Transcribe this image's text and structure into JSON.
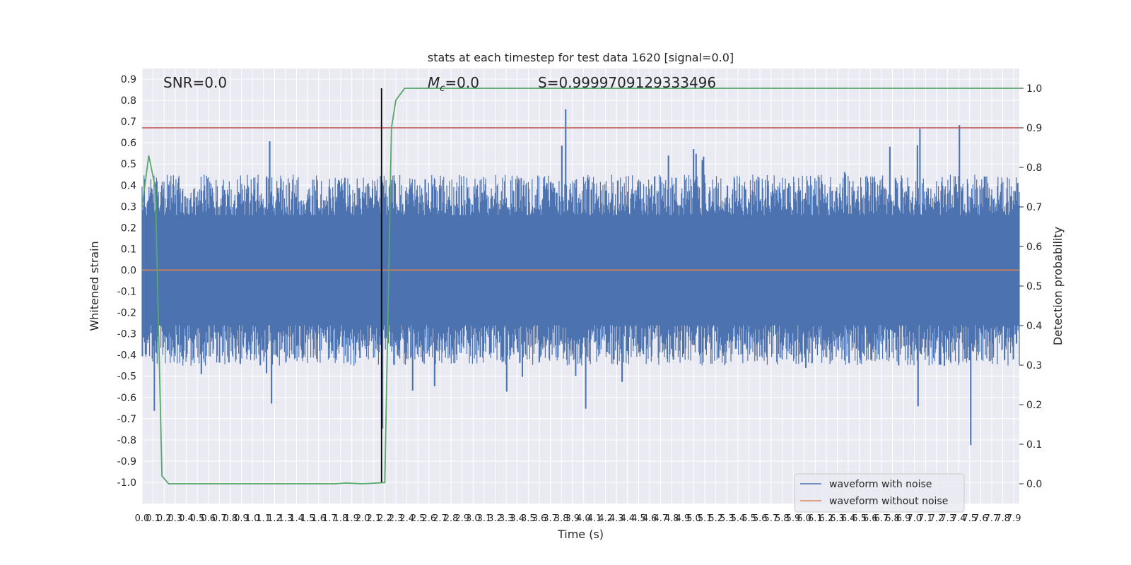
{
  "chart_data": {
    "type": "line",
    "title": "stats at each timestep for test data 1620 [signal=0.0]",
    "xlabel": "Time (s)",
    "ylabel": "Whitened strain",
    "y2label": "Detection probability",
    "xlim": [
      0.0,
      7.95
    ],
    "ylim": [
      -1.1,
      0.95
    ],
    "y2lim": [
      -0.05,
      1.05
    ],
    "x_ticks": [
      "0.0",
      "0.1",
      "0.2",
      "0.3",
      "0.4",
      "0.5",
      "0.6",
      "0.7",
      "0.8",
      "0.9",
      "1.0",
      "1.1",
      "1.2",
      "1.3",
      "1.4",
      "1.5",
      "1.6",
      "1.7",
      "1.8",
      "1.9",
      "2.0",
      "2.1",
      "2.2",
      "2.3",
      "2.4",
      "2.5",
      "2.6",
      "2.7",
      "2.8",
      "2.9",
      "3.0",
      "3.1",
      "3.2",
      "3.3",
      "3.4",
      "3.5",
      "3.6",
      "3.7",
      "3.8",
      "3.9",
      "4.0",
      "4.1",
      "4.2",
      "4.3",
      "4.4",
      "4.5",
      "4.6",
      "4.7",
      "4.8",
      "4.9",
      "5.0",
      "5.1",
      "5.2",
      "5.3",
      "5.4",
      "5.5",
      "5.6",
      "5.7",
      "5.8",
      "5.9",
      "6.0",
      "6.1",
      "6.2",
      "6.3",
      "6.4",
      "6.5",
      "6.6",
      "6.7",
      "6.8",
      "6.9",
      "7.0",
      "7.1",
      "7.2",
      "7.3",
      "7.4",
      "7.5",
      "7.6",
      "7.7",
      "7.8",
      "7.9"
    ],
    "y_ticks": [
      "0.9",
      "0.8",
      "0.7",
      "0.6",
      "0.5",
      "0.4",
      "0.3",
      "0.2",
      "0.1",
      "0.0",
      "-0.1",
      "-0.2",
      "-0.3",
      "-0.4",
      "-0.5",
      "-0.6",
      "-0.7",
      "-0.8",
      "-0.9",
      "-1.0"
    ],
    "y2_ticks": [
      "1.0",
      "0.9",
      "0.8",
      "0.7",
      "0.6",
      "0.5",
      "0.4",
      "0.3",
      "0.2",
      "0.1",
      "0.0"
    ],
    "series": [
      {
        "name": "waveform with noise",
        "color": "#4c72b0",
        "axis": "left",
        "summary": "dense whitened noise spanning approx -1.0 to 0.86, typical envelope -0.45 to 0.45",
        "noise_seed": 1620,
        "noise_samples": 1400
      },
      {
        "name": "waveform without noise",
        "color": "#dd8452",
        "axis": "left",
        "x": [
          0.0,
          7.95
        ],
        "y": [
          0.0,
          0.0
        ]
      },
      {
        "name": "",
        "color": "#55a868",
        "axis": "right",
        "x": [
          0.0,
          0.06,
          0.12,
          0.18,
          0.24,
          0.5,
          1.0,
          1.5,
          1.75,
          1.85,
          2.0,
          2.2,
          2.26,
          2.3,
          2.38,
          2.5,
          3.0,
          4.0,
          5.0,
          6.0,
          7.0,
          7.95
        ],
        "y": [
          0.7,
          0.83,
          0.75,
          0.02,
          0.0,
          0.0,
          0.0,
          0.0,
          0.0,
          0.002,
          0.0,
          0.003,
          0.9,
          0.97,
          1.0,
          1.0,
          1.0,
          1.0,
          1.0,
          1.0,
          1.0,
          1.0
        ]
      }
    ],
    "threshold_line": {
      "axis": "right",
      "y": 0.9,
      "color": "#c44e52"
    },
    "vertical_line": {
      "x": 2.17,
      "color": "#000000"
    },
    "annotations": {
      "snr": "SNR=0.0",
      "mc_symbol": "M",
      "mc_sub": "c",
      "mc_value": "=0.0",
      "s": "S=0.9999709129333496"
    },
    "grid": true,
    "background": "#eaeaf2",
    "legend_position": "lower-right"
  }
}
